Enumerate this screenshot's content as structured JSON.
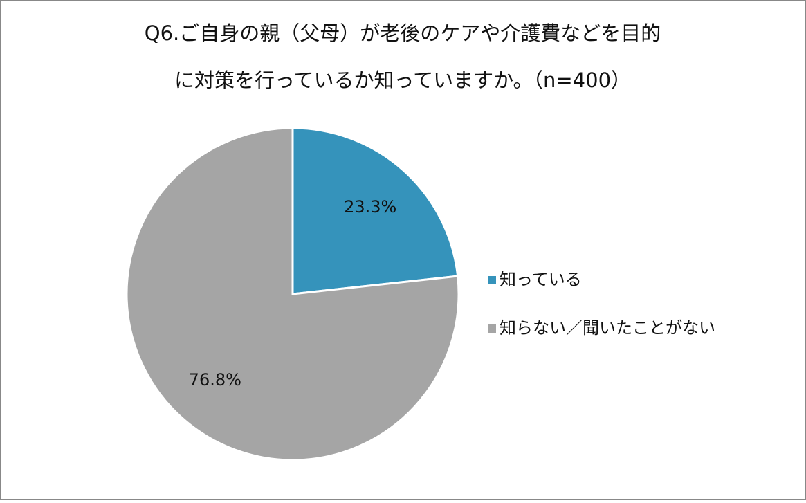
{
  "chart_data": {
    "type": "pie",
    "title": [
      "Q6.ご自身の親（父母）が老後のケアや介護費などを目的",
      "に対策を行っているか知っていますか。（n=400）"
    ],
    "categories": [
      "知っている",
      "知らない／聞いたことがない"
    ],
    "values": [
      23.3,
      76.8
    ],
    "value_labels": [
      "23.3%",
      "76.8%"
    ],
    "colors": [
      "#3593bb",
      "#a5a5a5"
    ],
    "legend": "right"
  }
}
